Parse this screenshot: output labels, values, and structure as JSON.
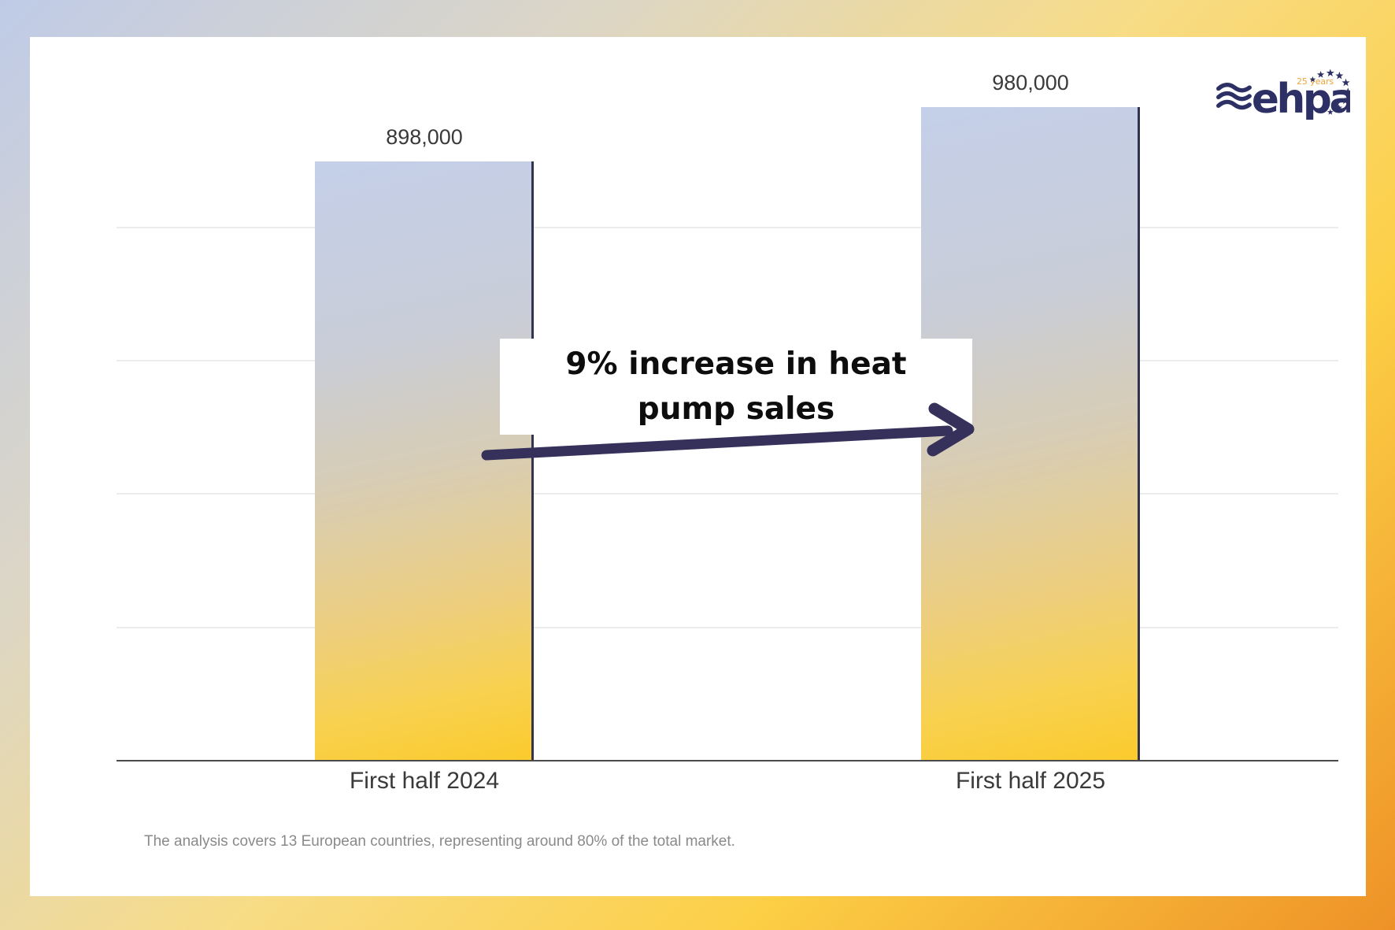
{
  "page": {
    "footnote": "The analysis covers 13 European countries, representing around 80% of the total market."
  },
  "logo": {
    "name": "ehpa",
    "anniversary": "25 years"
  },
  "annotation": {
    "text": "9% increase in heat pump sales",
    "line1": "9% increase in heat",
    "line2": "pump sales"
  },
  "chart_data": {
    "type": "bar",
    "categories": [
      "First half 2024",
      "First half 2025"
    ],
    "values": [
      898000,
      980000
    ],
    "value_labels": [
      "898,000",
      "980,000"
    ],
    "title": "",
    "xlabel": "",
    "ylabel": "",
    "ylim": [
      0,
      1085000
    ],
    "gridline_values": [
      200000,
      400000,
      600000,
      800000
    ],
    "grid": true,
    "legend_position": "none",
    "annotation": "9% increase in heat pump sales"
  },
  "colors": {
    "navy": "#2d3064",
    "arrow": "#35315a",
    "bar_edge": "#32344f",
    "bar_top": "#c4cfe9",
    "bar_bottom": "#fbca2c",
    "logo_orange": "#eda43b",
    "label_text": "#3a3a3a",
    "footnote_text": "#8a8a8a",
    "frame_blue": "#bfcbe7",
    "frame_yellow": "#fccf45",
    "frame_orange": "#ee9227"
  }
}
